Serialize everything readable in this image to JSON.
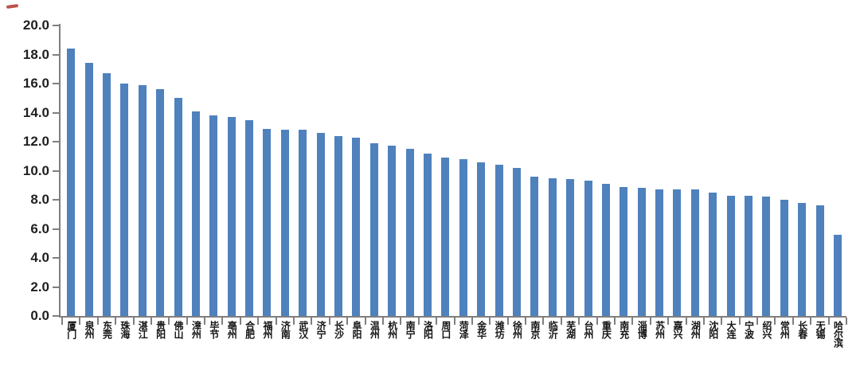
{
  "decoration": {
    "corner_mark": "red-scribble",
    "corner_mark_color": "#b03226"
  },
  "chart_data": {
    "type": "bar",
    "title": "",
    "xlabel": "",
    "ylabel": "",
    "ylim": [
      0,
      20
    ],
    "ytick_step": 2.0,
    "ytick_labels": [
      "20.0",
      "18.0",
      "16.0",
      "14.0",
      "12.0",
      "10.0",
      "8.0",
      "6.0",
      "4.0",
      "2.0",
      "0.0"
    ],
    "grid": false,
    "legend": null,
    "bar_color": "#4f81bd",
    "axis_color": "#7f7f7f",
    "tick_label_color": "#1f1f1f",
    "categories": [
      "厦门",
      "泉州",
      "东莞",
      "珠海",
      "湛江",
      "贵阳",
      "佛山",
      "漳州",
      "毕节",
      "亳州",
      "合肥",
      "福州",
      "济南",
      "武汉",
      "济宁",
      "长沙",
      "阜阳",
      "温州",
      "杭州",
      "南宁",
      "洛阳",
      "周口",
      "菏泽",
      "金华",
      "潍坊",
      "徐州",
      "南京",
      "临沂",
      "芜湖",
      "台州",
      "重庆",
      "南充",
      "淄博",
      "苏州",
      "嘉兴",
      "湖州",
      "沈阳",
      "大连",
      "宁波",
      "绍兴",
      "常州",
      "长春",
      "无锡",
      "哈尔滨"
    ],
    "values": [
      18.4,
      17.4,
      16.7,
      16.0,
      15.9,
      15.6,
      15.0,
      14.1,
      13.8,
      13.7,
      13.5,
      12.9,
      12.8,
      12.8,
      12.6,
      12.4,
      12.3,
      11.9,
      11.7,
      11.5,
      11.2,
      10.9,
      10.8,
      10.6,
      10.4,
      10.2,
      9.6,
      9.5,
      9.4,
      9.3,
      9.1,
      8.9,
      8.8,
      8.7,
      8.7,
      8.7,
      8.5,
      8.3,
      8.3,
      8.2,
      8.0,
      7.8,
      7.6,
      5.6
    ]
  }
}
